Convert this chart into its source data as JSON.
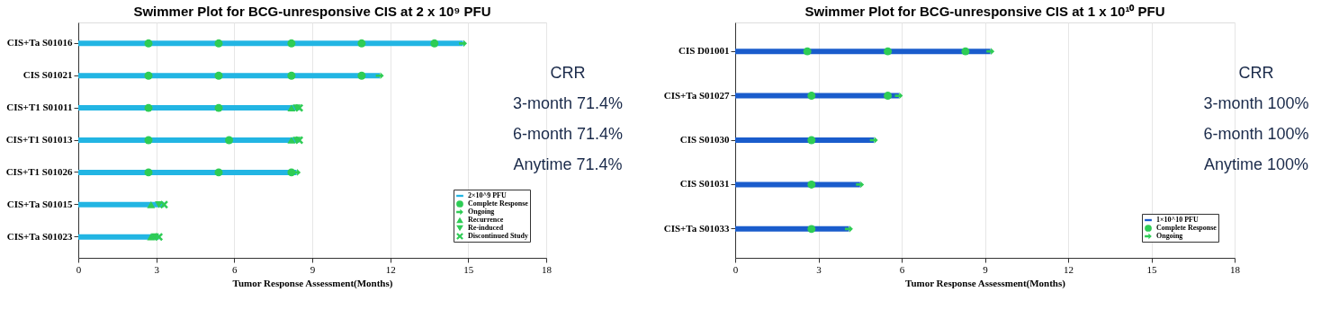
{
  "chart_data": [
    {
      "type": "bar",
      "orientation": "horizontal",
      "title": "Swimmer Plot for BCG-unresponsive CIS at 2 x 10⁹ PFU",
      "xlabel": "Tumor Response Assessment(Months)",
      "categories": [
        "CIS+Ta S01016",
        "CIS S01021",
        "CIS+T1 S01011",
        "CIS+T1 S01013",
        "CIS+T1 S01026",
        "CIS+Ta S01015",
        "CIS+Ta S01023"
      ],
      "series": [
        {
          "name": "2×10^9 PFU",
          "color": "#22b5e3",
          "values": [
            14.8,
            11.6,
            8.5,
            8.5,
            8.4,
            3.3,
            3.1
          ]
        },
        {
          "name": "Complete Response",
          "type": "scatter",
          "marker": "circle",
          "color": "#2ecc55",
          "x": [
            "CIS+Ta S01016",
            "CIS+Ta S01016",
            "CIS+Ta S01016",
            "CIS+Ta S01016",
            "CIS+Ta S01016",
            "CIS S01021",
            "CIS S01021",
            "CIS S01021",
            "CIS S01021",
            "CIS+T1 S01011",
            "CIS+T1 S01011",
            "CIS+T1 S01013",
            "CIS+T1 S01013",
            "CIS+T1 S01026",
            "CIS+T1 S01026",
            "CIS+T1 S01026"
          ],
          "values": [
            2.7,
            5.4,
            8.2,
            10.9,
            13.7,
            2.7,
            5.4,
            8.2,
            10.9,
            2.7,
            5.4,
            2.7,
            5.8,
            2.7,
            5.4,
            8.2
          ]
        },
        {
          "name": "Ongoing",
          "type": "scatter",
          "color": "#2ecc55",
          "x": [
            "CIS+Ta S01016",
            "CIS S01021",
            "CIS+T1 S01026"
          ],
          "values": [
            14.8,
            11.6,
            8.4
          ]
        },
        {
          "name": "Recurrence",
          "type": "scatter",
          "marker": "triangle",
          "color": "#2ecc55",
          "x": [
            "CIS+T1 S01011",
            "CIS+T1 S01013",
            "CIS+Ta S01015",
            "CIS+Ta S01023"
          ],
          "values": [
            8.2,
            8.2,
            2.8,
            2.8
          ]
        },
        {
          "name": "Re-induced",
          "type": "scatter",
          "marker": "triangle-down",
          "color": "#2ecc55",
          "x": [
            "CIS+T1 S01011",
            "CIS+T1 S01013",
            "CIS+Ta S01015",
            "CIS+Ta S01023"
          ],
          "values": [
            8.4,
            8.4,
            3.1,
            2.95
          ]
        },
        {
          "name": "Discontinued Study",
          "type": "scatter",
          "marker": "cross",
          "color": "#2ecc55",
          "x": [
            "CIS+T1 S01011",
            "CIS+T1 S01013",
            "CIS+Ta S01015",
            "CIS+Ta S01023"
          ],
          "values": [
            8.5,
            8.5,
            3.3,
            3.1
          ]
        }
      ],
      "xlim": [
        0,
        18
      ],
      "xticks": [
        0,
        3,
        6,
        9,
        12,
        15,
        18
      ],
      "grid": "x",
      "legend": "bottom right",
      "annotations": [
        "CRR",
        "3-month  71.4%",
        "6-month  71.4%",
        "Anytime  71.4%"
      ]
    },
    {
      "type": "bar",
      "orientation": "horizontal",
      "title": "Swimmer Plot for BCG-unresponsive CIS at 1 x 10¹⁰ PFU",
      "xlabel": "Tumor Response Assessment(Months)",
      "categories": [
        "CIS D01001",
        "CIS+Ta S01027",
        "CIS S01030",
        "CIS S01031",
        "CIS+Ta S01033"
      ],
      "series": [
        {
          "name": "1×10^10 PFU",
          "color": "#1a5ccc",
          "values": [
            9.2,
            5.9,
            5.0,
            4.5,
            4.1
          ]
        },
        {
          "name": "Complete Response",
          "type": "scatter",
          "marker": "circle",
          "color": "#2ecc55",
          "x": [
            "CIS D01001",
            "CIS D01001",
            "CIS D01001",
            "CIS+Ta S01027",
            "CIS+Ta S01027",
            "CIS S01030",
            "CIS S01031",
            "CIS+Ta S01033"
          ],
          "values": [
            2.6,
            5.5,
            8.3,
            2.75,
            5.5,
            2.75,
            2.75,
            2.75
          ]
        },
        {
          "name": "Ongoing",
          "type": "scatter",
          "color": "#2ecc55",
          "x": [
            "CIS D01001",
            "CIS+Ta S01027",
            "CIS S01030",
            "CIS S01031",
            "CIS+Ta S01033"
          ],
          "values": [
            9.2,
            5.9,
            5.0,
            4.5,
            4.1
          ]
        }
      ],
      "xlim": [
        0,
        18
      ],
      "xticks": [
        0,
        3,
        6,
        9,
        12,
        15,
        18
      ],
      "grid": "x",
      "legend": "bottom right",
      "annotations": [
        "CRR",
        "3-month  100%",
        "6-month  100%",
        "Anytime  100%"
      ]
    }
  ]
}
